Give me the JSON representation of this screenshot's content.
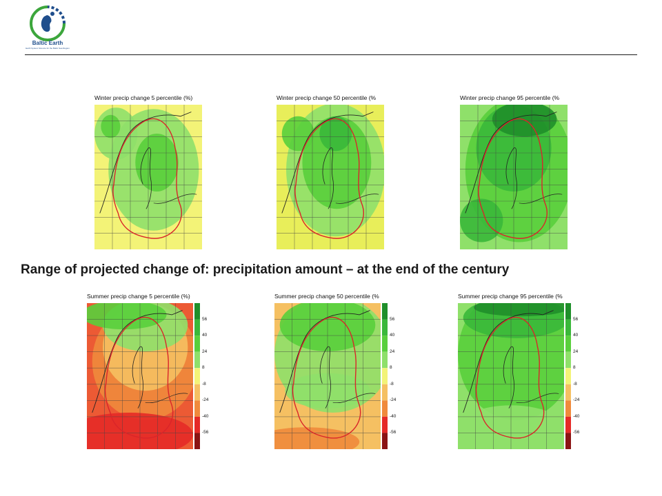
{
  "logo": {
    "name": "Baltic Earth",
    "tagline": "Earth System Science for the Baltic Sea Region"
  },
  "caption": "Range of  projected change of: precipitation amount – at the end of the century",
  "colors": {
    "dark_green": "#1f8f2a",
    "green": "#3ab83a",
    "mid_green": "#59cf3c",
    "light_green": "#8fe06a",
    "pale_yellow": "#f3f377",
    "yellow": "#e8ee5a",
    "light_orange": "#f5c062",
    "orange": "#f08a3c",
    "red_orange": "#ec5a34",
    "red": "#e52a27",
    "dark_red": "#8b1414",
    "border_red": "#d9252a"
  },
  "panels": [
    {
      "id": "winter-5",
      "title": "Winter precip change 5 percentile (%)"
    },
    {
      "id": "winter-50",
      "title": "Winter precip change 50 percentile (%"
    },
    {
      "id": "winter-95",
      "title": "Winter precip change 95 percentile (%"
    },
    {
      "id": "summer-5",
      "title": "Summer precip change 5 percentile (%)"
    },
    {
      "id": "summer-50",
      "title": "Summer precip change 50 percentile (%"
    },
    {
      "id": "summer-95",
      "title": "Summer precip change 95 percentile (%"
    }
  ],
  "colorbar": {
    "ticks": [
      "56",
      "40",
      "24",
      "8",
      "-8",
      "-24",
      "-40",
      "-56"
    ]
  }
}
